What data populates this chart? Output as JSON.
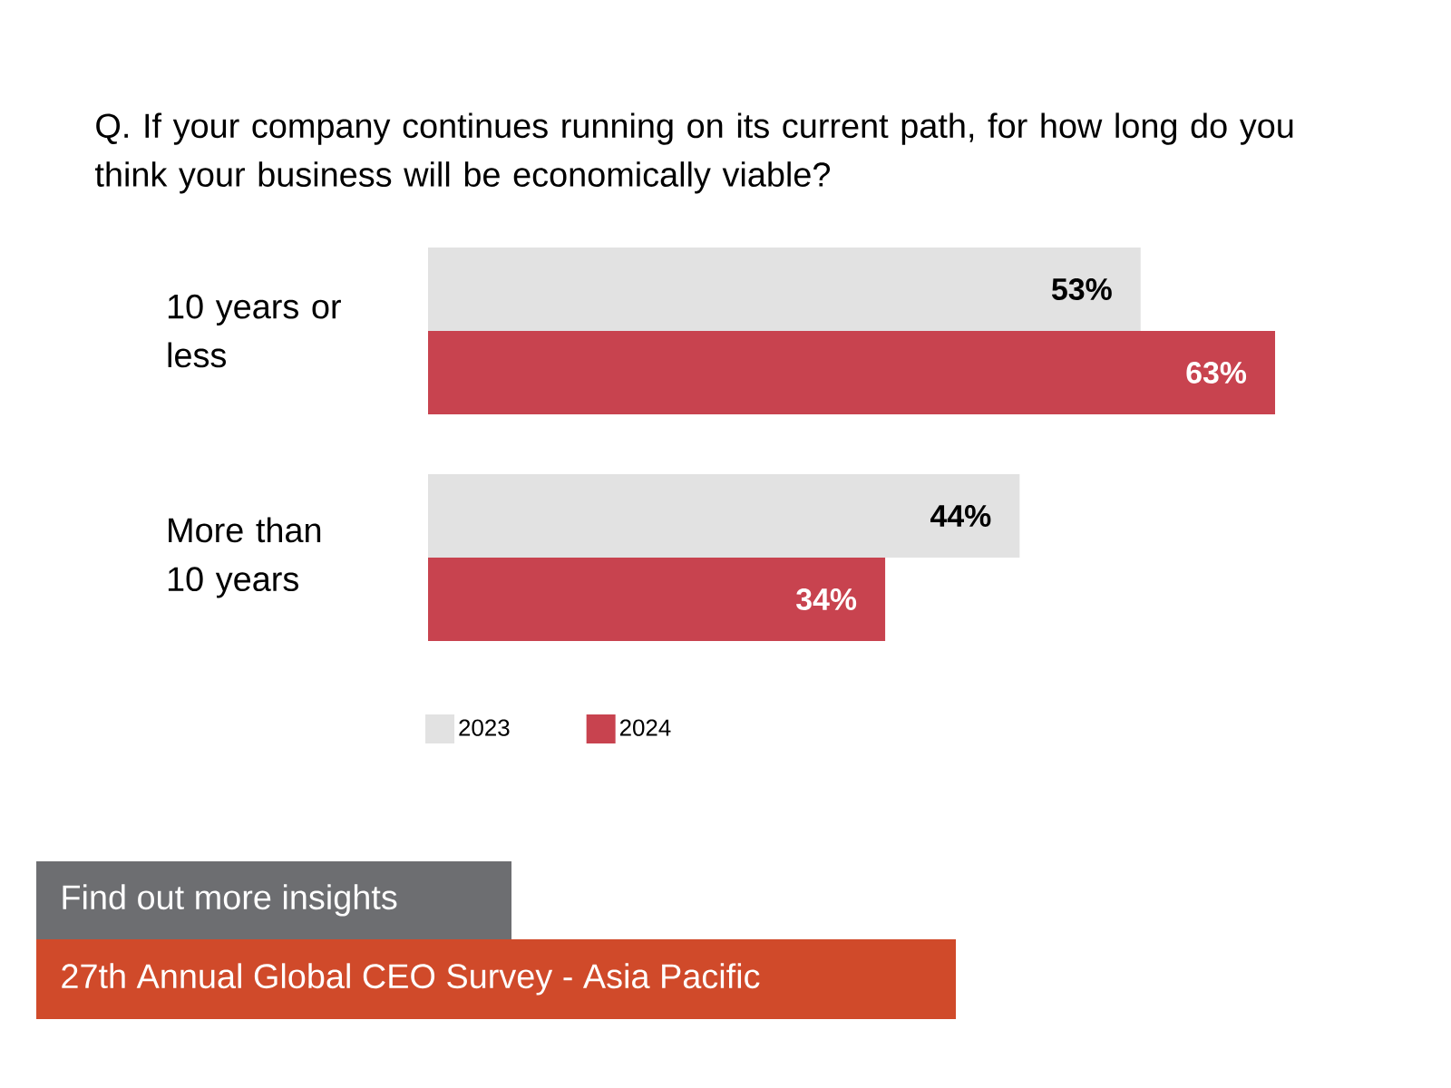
{
  "chart_data": {
    "type": "bar",
    "orientation": "horizontal",
    "title": "Q. If your company continues running on its current path, for how long do you think your business will be economically viable?",
    "categories": [
      "10 years or less",
      "More than 10 years"
    ],
    "series": [
      {
        "name": "2023",
        "color": "#e2e2e2",
        "values": [
          53,
          44
        ],
        "value_labels": [
          "53%",
          "44%"
        ]
      },
      {
        "name": "2024",
        "color": "#c8434f",
        "values": [
          63,
          34
        ],
        "value_labels": [
          "63%",
          "34%"
        ]
      }
    ],
    "xlim": [
      0,
      63
    ],
    "legend": "bottom",
    "annotations": [
      "Find out more insights",
      "27th Annual Global CEO Survey - Asia Pacific"
    ]
  }
}
